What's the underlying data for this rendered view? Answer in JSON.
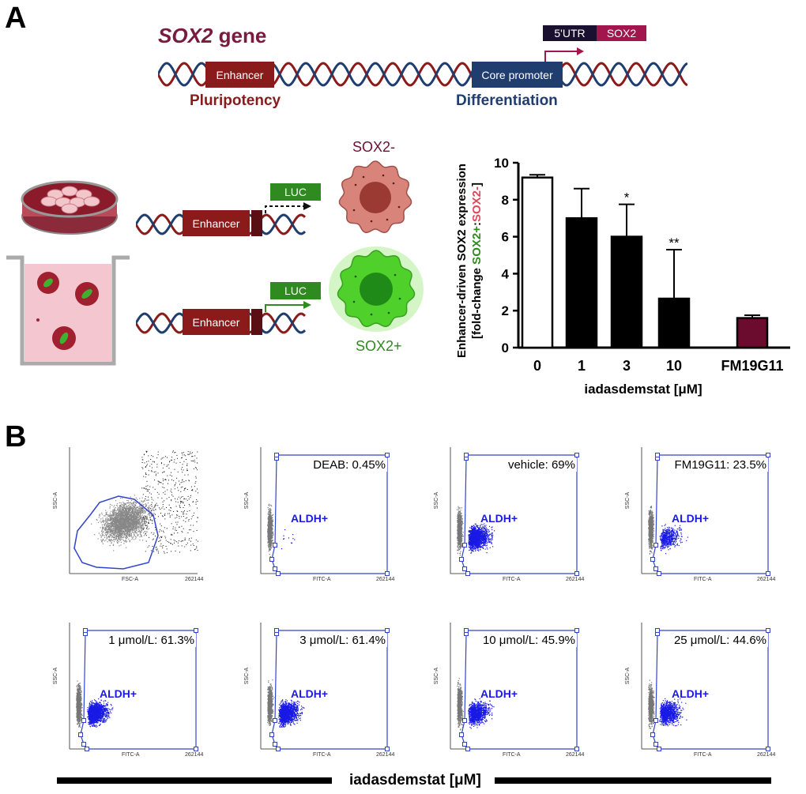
{
  "panel_a": {
    "letter": "A",
    "gene_title_italic": "SOX2",
    "gene_title_rest": " gene",
    "utr_label": "5'UTR",
    "sox2_label": "SOX2",
    "enhancer_label": "Enhancer",
    "core_promoter_label": "Core promoter",
    "pluripotency_label": "Pluripotency",
    "differentiation_label": "Differentiation",
    "luc_label": "LUC",
    "sox2_minus_label": "SOX2-",
    "sox2_plus_label": "SOX2+",
    "colors": {
      "maroon": "#8b1a1a",
      "navy": "#1f3d6e",
      "green": "#2f8a1f",
      "bar_fm": "#6b0b2e"
    }
  },
  "chart_data": {
    "type": "bar",
    "categories": [
      "0",
      "1",
      "3",
      "10",
      "FM19G11"
    ],
    "values": [
      9.2,
      7.0,
      6.0,
      2.65,
      1.6
    ],
    "errors": [
      0.15,
      1.6,
      1.75,
      2.65,
      0.15
    ],
    "significance": [
      "",
      "",
      "*",
      "**",
      ""
    ],
    "bar_fills": [
      "#ffffff",
      "#000000",
      "#000000",
      "#000000",
      "#6b0b2e"
    ],
    "ylabel_line1": "Enhancer-driven SOX2 expression",
    "ylabel_line2_prefix": "[fold-change ",
    "ylabel_line2_green": "SOX2+",
    "ylabel_line2_sep": ":",
    "ylabel_line2_red": "SOX2-",
    "ylabel_line2_suffix": "]",
    "xlabel": "iadasdemstat [μM]",
    "ylim": [
      0,
      10
    ],
    "yticks": [
      "0",
      "2",
      "4",
      "6",
      "8",
      "10"
    ]
  },
  "panel_b": {
    "letter": "B",
    "gating": {
      "xlabel": "FSC-A",
      "ylabel": "SSC-A",
      "max_tick": "262144"
    },
    "plots": [
      {
        "label": "DEAB: 0.45%",
        "gate": "ALDH+",
        "density": 0.0045
      },
      {
        "label": "vehicle: 69%",
        "gate": "ALDH+",
        "density": 0.69
      },
      {
        "label": "FM19G11: 23.5%",
        "gate": "ALDH+",
        "density": 0.235
      },
      {
        "label": "1 μmol/L: 61.3%",
        "gate": "ALDH+",
        "density": 0.613
      },
      {
        "label": "3 μmol/L: 61.4%",
        "gate": "ALDH+",
        "density": 0.614
      },
      {
        "label": "10 μmol/L: 45.9%",
        "gate": "ALDH+",
        "density": 0.459
      },
      {
        "label": "25 μmol/L: 44.6%",
        "gate": "ALDH+",
        "density": 0.446
      }
    ],
    "flow_xlabel": "FITC-A",
    "flow_ylabel": "SSC-A",
    "max_tick": "262144",
    "bottom_label": "iadasdemstat [μM]"
  }
}
